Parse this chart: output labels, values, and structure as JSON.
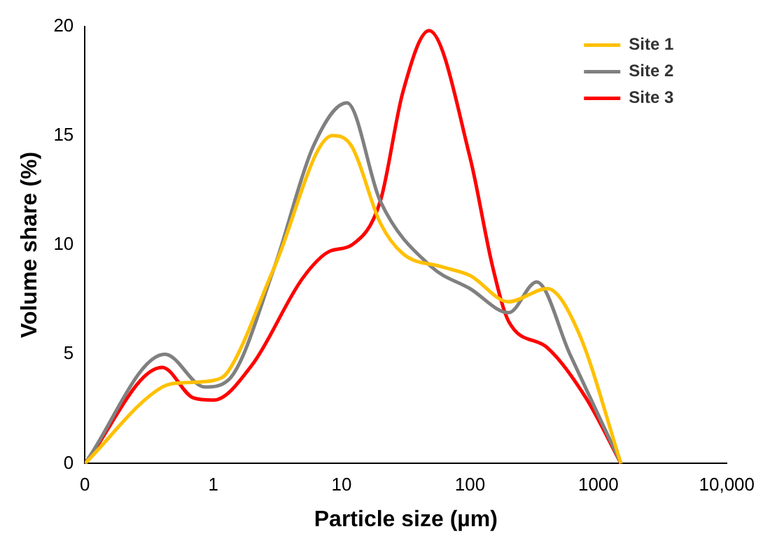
{
  "chart_data": {
    "type": "line",
    "xlabel": "Particle size (µm)",
    "ylabel": "Volume share (%)",
    "log": "x",
    "xlim": [
      0.1,
      10000
    ],
    "xticks": [
      {
        "value": 0.1,
        "label": "0"
      },
      1,
      10,
      100,
      1000,
      {
        "value": 10000,
        "label": "10,000"
      }
    ],
    "ylim": [
      0,
      20
    ],
    "yticks": [
      0,
      5,
      10,
      15,
      20
    ],
    "grid": false,
    "legend": "top right",
    "marker": "none",
    "line_style": "solid",
    "series": [
      {
        "name": "Site 1",
        "color": "#ffc000",
        "x": [
          0.1,
          0.4,
          0.6,
          1,
          1.3,
          3,
          8.5,
          12,
          20,
          30,
          60,
          100,
          200,
          400,
          700,
          1500
        ],
        "values": [
          0,
          3.5,
          3.7,
          3.8,
          4.2,
          9,
          15,
          14.5,
          11,
          9.6,
          9,
          8.6,
          7.4,
          8,
          6,
          0
        ]
      },
      {
        "name": "Site 2",
        "color": "#808080",
        "x": [
          0.1,
          0.42,
          0.86,
          1.3,
          3,
          6,
          11,
          20,
          50,
          100,
          200,
          330,
          600,
          1500
        ],
        "values": [
          0,
          5,
          3.5,
          3.8,
          9,
          14.5,
          16.5,
          12,
          9,
          8,
          6.9,
          8.3,
          5,
          0
        ]
      },
      {
        "name": "Site 3",
        "color": "#ff0000",
        "x": [
          0.1,
          0.4,
          0.7,
          1,
          2,
          5,
          8,
          12,
          20,
          30,
          48,
          100,
          150,
          200,
          400,
          800,
          1500
        ],
        "values": [
          0,
          4.4,
          3,
          2.9,
          4.5,
          8.5,
          9.7,
          10,
          12,
          17,
          19.8,
          14,
          9,
          6.5,
          5.3,
          3,
          0
        ]
      }
    ]
  }
}
